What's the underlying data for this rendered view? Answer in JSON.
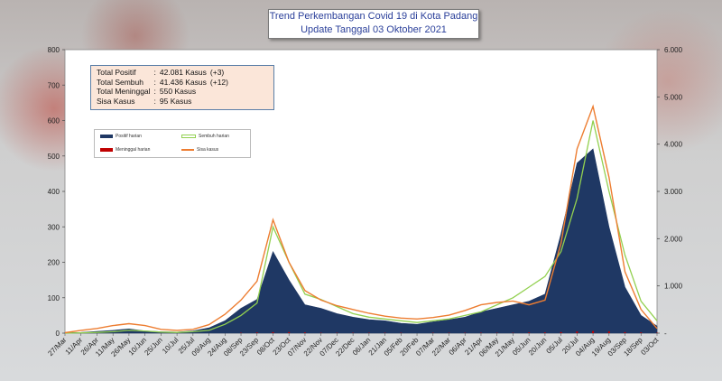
{
  "title": {
    "line1": "Trend Perkembangan Covid 19 di Kota Padang",
    "line2": "Update Tanggal 03 Oktober 2021"
  },
  "stats": [
    {
      "label": "Total Positif",
      "sep": ":",
      "value": "42.081 Kasus",
      "delta": "(+3)"
    },
    {
      "label": "Total Sembuh",
      "sep": ":",
      "value": "41.436 Kasus",
      "delta": "(+12)"
    },
    {
      "label": "Total Meninggal",
      "sep": ":",
      "value": "550 Kasus",
      "delta": ""
    },
    {
      "label": "Sisa Kasus",
      "sep": ":",
      "value": "95 Kasus",
      "delta": ""
    }
  ],
  "colors": {
    "positif": "#1f3864",
    "sembuh": "#92d050",
    "meninggal": "#c00000",
    "sisa": "#ed7d31"
  },
  "chart_data": {
    "type": "bar",
    "x_labels": [
      "27/Mar",
      "11/Apr",
      "26/Apr",
      "11/May",
      "26/May",
      "10/Jun",
      "25/Jun",
      "10/Jul",
      "25/Jul",
      "09/Aug",
      "24/Aug",
      "08/Sep",
      "23/Sep",
      "08/Oct",
      "23/Oct",
      "07/Nov",
      "22/Nov",
      "07/Dec",
      "22/Dec",
      "06/Jan",
      "21/Jan",
      "05/Feb",
      "20/Feb",
      "07/Mar",
      "22/Mar",
      "06/Apr",
      "21/Apr",
      "06/May",
      "21/May",
      "05/Jun",
      "20/Jun",
      "05/Jul",
      "20/Jul",
      "04/Aug",
      "19/Aug",
      "03/Sep",
      "18/Sep",
      "03/Oct"
    ],
    "left_axis": {
      "min": 0,
      "max": 800,
      "ticks": [
        "0",
        "100",
        "200",
        "300",
        "400",
        "500",
        "600",
        "700",
        "800"
      ]
    },
    "right_axis": {
      "min": 0,
      "max": 6000,
      "ticks": [
        "-",
        "1.000",
        "2.000",
        "3.000",
        "4.000",
        "5.000",
        "6.000"
      ]
    },
    "legend": [
      "Positif harian",
      "Sembuh harian",
      "Meninggal harian",
      "Sisa kasus"
    ],
    "series": [
      {
        "name": "Positif harian",
        "axis": "left",
        "style": "area",
        "values": [
          1,
          2,
          5,
          8,
          12,
          6,
          4,
          3,
          6,
          15,
          35,
          70,
          95,
          230,
          150,
          80,
          70,
          55,
          45,
          38,
          35,
          28,
          25,
          32,
          38,
          45,
          60,
          70,
          80,
          90,
          110,
          280,
          480,
          520,
          300,
          130,
          50,
          20
        ]
      },
      {
        "name": "Sembuh harian",
        "axis": "left",
        "style": "line",
        "values": [
          0,
          1,
          2,
          4,
          8,
          6,
          3,
          2,
          4,
          8,
          25,
          50,
          85,
          300,
          200,
          110,
          95,
          75,
          55,
          45,
          40,
          35,
          30,
          35,
          40,
          50,
          60,
          80,
          100,
          130,
          160,
          230,
          380,
          600,
          400,
          220,
          90,
          35
        ]
      },
      {
        "name": "Meninggal harian",
        "axis": "left",
        "style": "bar",
        "values": [
          0,
          0,
          0,
          0,
          0,
          0,
          0,
          0,
          0,
          0,
          0,
          1,
          2,
          3,
          3,
          2,
          1,
          1,
          1,
          1,
          1,
          1,
          0,
          1,
          1,
          1,
          1,
          1,
          1,
          2,
          2,
          3,
          5,
          6,
          5,
          3,
          2,
          1
        ]
      },
      {
        "name": "Sisa kasus",
        "axis": "right",
        "style": "line",
        "values": [
          10,
          60,
          100,
          160,
          200,
          160,
          80,
          60,
          80,
          180,
          400,
          700,
          1100,
          2400,
          1500,
          900,
          700,
          580,
          500,
          420,
          360,
          320,
          300,
          330,
          380,
          480,
          600,
          650,
          680,
          600,
          700,
          1900,
          3900,
          4800,
          3300,
          1300,
          500,
          100
        ]
      }
    ]
  }
}
